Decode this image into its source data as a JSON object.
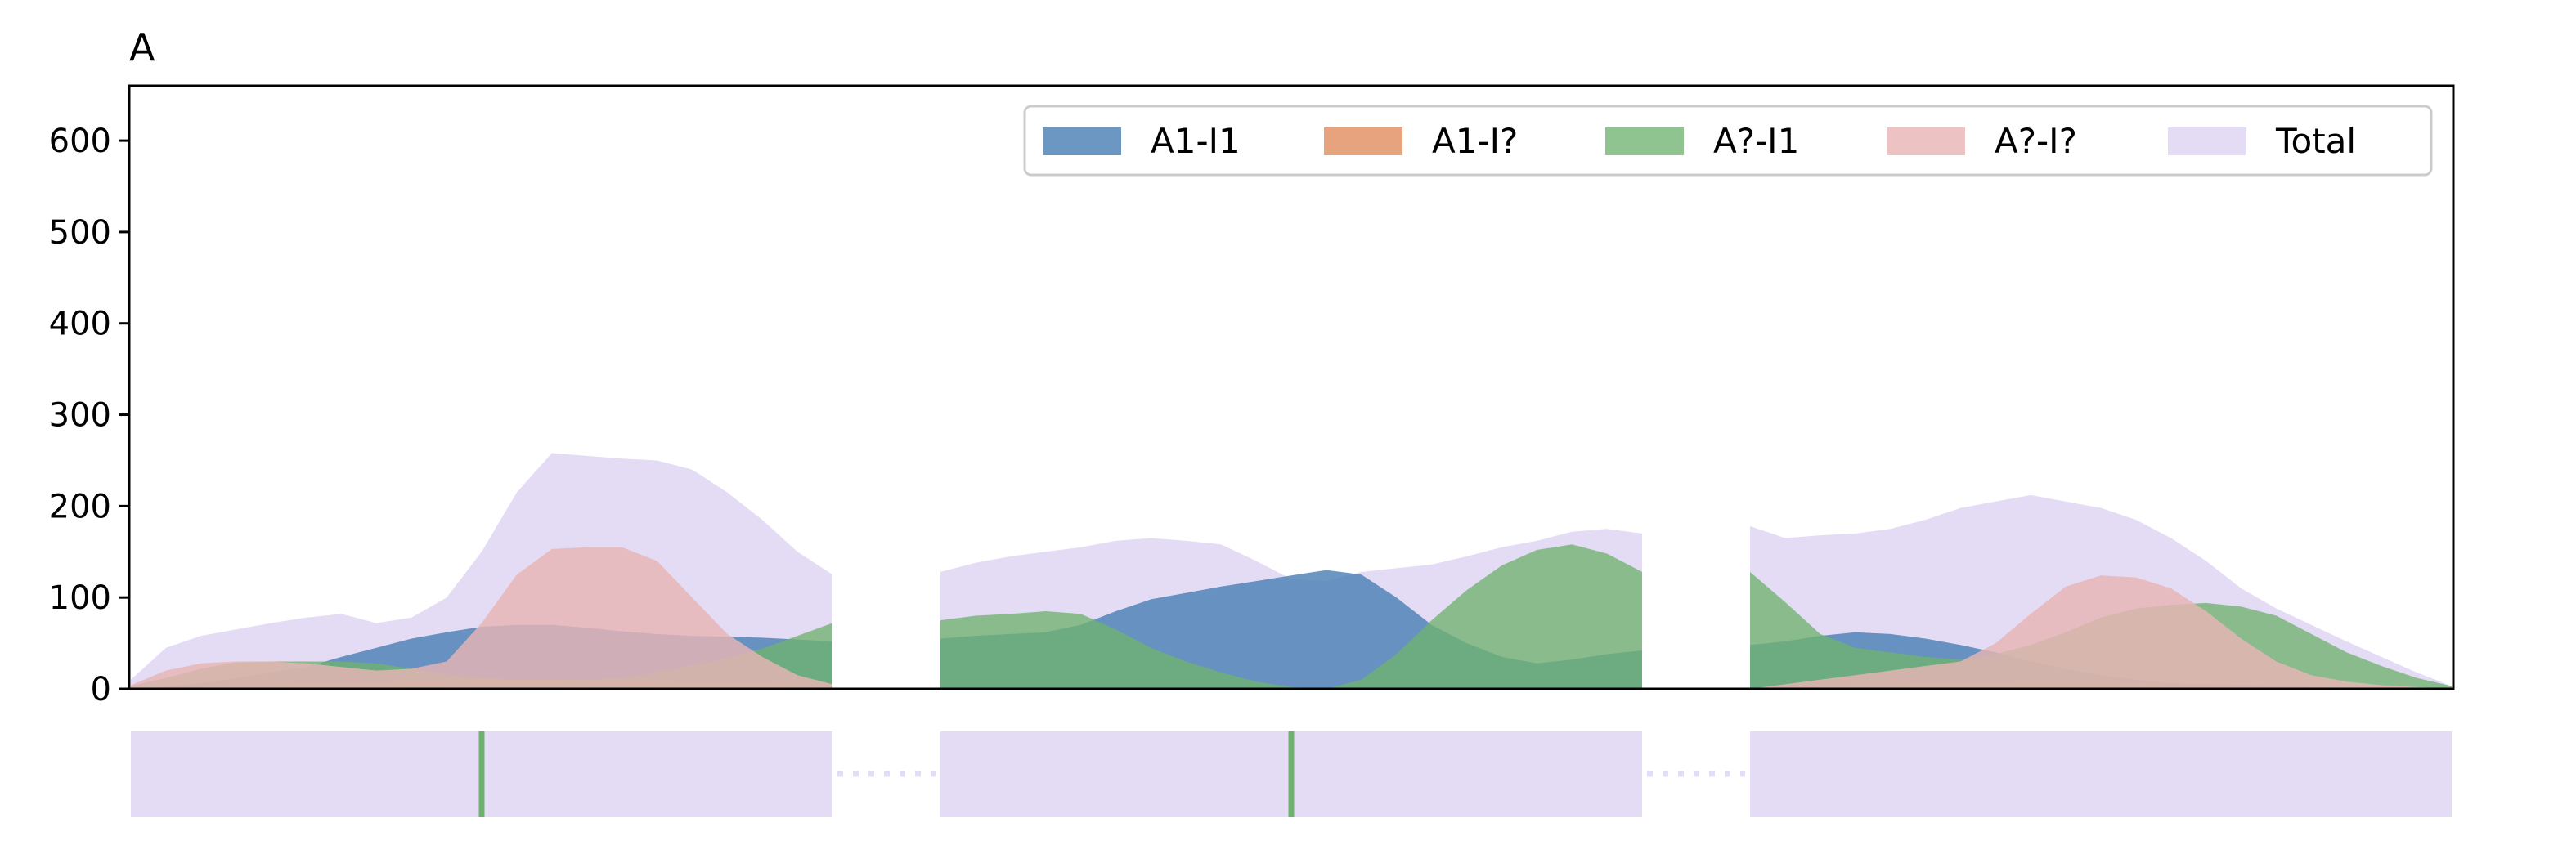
{
  "chart_data": {
    "type": "area",
    "panel_label": "A",
    "title": "",
    "xlabel": "",
    "ylabel": "",
    "ylim": [
      0,
      660
    ],
    "yticks": [
      0,
      100,
      200,
      300,
      400,
      500,
      600
    ],
    "segments": 3,
    "x": [
      0.0,
      0.05,
      0.1,
      0.15,
      0.2,
      0.25,
      0.3,
      0.35,
      0.4,
      0.45,
      0.5,
      0.55,
      0.6,
      0.65,
      0.7,
      0.75,
      0.8,
      0.85,
      0.9,
      0.95,
      1.0
    ],
    "legend": {
      "placement": "top-right",
      "columns": 5
    },
    "series": [
      {
        "name": "A1-I1",
        "color": "#4a80b5",
        "values": [
          [
            0,
            2,
            6,
            12,
            18,
            24,
            35,
            45,
            55,
            62,
            68,
            70,
            70,
            67,
            63,
            60,
            58,
            57,
            56,
            54,
            52
          ],
          [
            55,
            58,
            60,
            62,
            70,
            85,
            98,
            105,
            112,
            118,
            124,
            130,
            125,
            100,
            70,
            50,
            35,
            28,
            32,
            38,
            42
          ],
          [
            48,
            52,
            58,
            62,
            60,
            55,
            48,
            40,
            30,
            22,
            15,
            10,
            6,
            4,
            3,
            2,
            1,
            0,
            0,
            0,
            0
          ]
        ]
      },
      {
        "name": "A1-I?",
        "color": "#dd8452",
        "values": [
          [
            0,
            1,
            2,
            3,
            4,
            5,
            6,
            7,
            8,
            9,
            10,
            10,
            10,
            9,
            9,
            8,
            7,
            6,
            5,
            4,
            3
          ],
          [
            0,
            0,
            0,
            0,
            0,
            0,
            0,
            0,
            0,
            0,
            0,
            0,
            0,
            0,
            0,
            0,
            0,
            0,
            0,
            0,
            0
          ],
          [
            0,
            1,
            2,
            3,
            4,
            5,
            6,
            7,
            8,
            8,
            8,
            7,
            6,
            5,
            4,
            3,
            2,
            1,
            1,
            0,
            0
          ]
        ]
      },
      {
        "name": "A?-I1",
        "color": "#6fb26f",
        "values": [
          [
            3,
            12,
            22,
            29,
            30,
            30,
            30,
            28,
            22,
            16,
            12,
            10,
            10,
            10,
            12,
            18,
            26,
            34,
            44,
            58,
            72
          ],
          [
            75,
            80,
            82,
            85,
            82,
            65,
            45,
            30,
            18,
            8,
            2,
            0,
            10,
            38,
            75,
            108,
            135,
            152,
            158,
            148,
            128
          ],
          [
            128,
            95,
            60,
            45,
            40,
            35,
            32,
            38,
            48,
            62,
            78,
            88,
            92,
            94,
            90,
            80,
            60,
            40,
            25,
            12,
            3
          ]
        ]
      },
      {
        "name": "A?-I?",
        "color": "#e8b4b4",
        "values": [
          [
            4,
            20,
            28,
            30,
            30,
            28,
            24,
            20,
            22,
            30,
            72,
            125,
            153,
            155,
            155,
            140,
            100,
            60,
            35,
            15,
            5
          ],
          [
            0,
            0,
            0,
            0,
            0,
            0,
            0,
            0,
            0,
            0,
            0,
            0,
            0,
            0,
            0,
            0,
            0,
            0,
            0,
            0,
            0
          ],
          [
            0,
            5,
            10,
            15,
            20,
            25,
            30,
            50,
            82,
            112,
            124,
            122,
            110,
            85,
            55,
            30,
            15,
            8,
            4,
            2,
            0
          ]
        ]
      },
      {
        "name": "Total",
        "color": "#e4dcf5",
        "values": [
          [
            10,
            45,
            58,
            65,
            72,
            78,
            82,
            72,
            78,
            100,
            150,
            215,
            258,
            255,
            252,
            250,
            240,
            215,
            185,
            150,
            125
          ],
          [
            128,
            138,
            145,
            150,
            155,
            162,
            165,
            162,
            158,
            140,
            120,
            118,
            128,
            132,
            136,
            145,
            155,
            162,
            172,
            175,
            170
          ],
          [
            178,
            165,
            168,
            170,
            175,
            185,
            198,
            205,
            212,
            205,
            198,
            185,
            165,
            140,
            110,
            88,
            70,
            52,
            35,
            18,
            3
          ]
        ]
      }
    ],
    "bottom_strip": {
      "fill": "#e4dcf5",
      "marker_color": "#6fb26f",
      "markers": [
        {
          "segment": 0,
          "position": 0.5
        },
        {
          "segment": 1,
          "position": 0.5
        }
      ],
      "connector": "dotted"
    }
  }
}
